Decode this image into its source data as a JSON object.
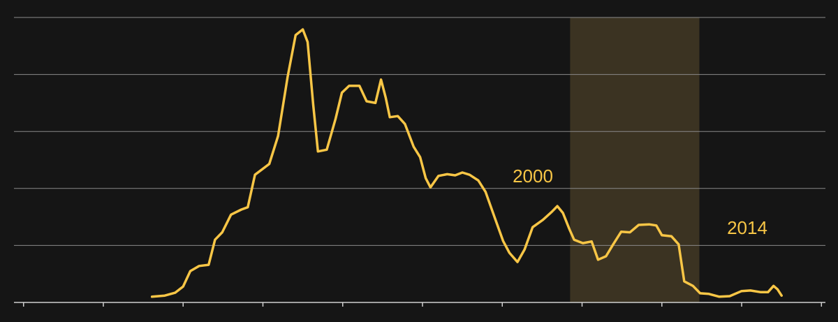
{
  "chart_data": {
    "type": "line",
    "color": "#f8c646",
    "grid": true,
    "xlim": [
      -0.12,
      10.05
    ],
    "xticks": [
      0,
      1,
      2,
      3,
      4,
      5,
      6,
      7,
      8,
      9,
      10
    ],
    "ylim": [
      0,
      5
    ],
    "yticks": [
      0,
      1,
      2,
      3,
      4,
      5
    ],
    "shaded_span": [
      6.85,
      8.47
    ],
    "annotations": [
      "2000",
      "2014"
    ],
    "x": [
      1.61,
      1.77,
      1.9,
      2.0,
      2.09,
      2.2,
      2.32,
      2.4,
      2.49,
      2.6,
      2.73,
      2.81,
      2.9,
      3.08,
      3.19,
      3.31,
      3.41,
      3.5,
      3.56,
      3.63,
      3.69,
      3.8,
      3.91,
      3.99,
      4.08,
      4.21,
      4.3,
      4.41,
      4.48,
      4.54,
      4.59,
      4.69,
      4.78,
      4.89,
      4.97,
      5.04,
      5.1,
      5.2,
      5.31,
      5.41,
      5.5,
      5.59,
      5.7,
      5.79,
      5.9,
      6.01,
      6.09,
      6.19,
      6.28,
      6.38,
      6.51,
      6.62,
      6.69,
      6.76,
      6.84,
      6.9,
      7.01,
      7.12,
      7.2,
      7.3,
      7.39,
      7.49,
      7.6,
      7.71,
      7.84,
      7.93,
      8.0,
      8.12,
      8.21,
      8.28,
      8.39,
      8.48,
      8.59,
      8.72,
      8.85,
      9.0,
      9.11,
      9.24,
      9.33,
      9.4,
      9.45,
      9.5
    ],
    "values": [
      0.1,
      0.12,
      0.17,
      0.28,
      0.55,
      0.64,
      0.66,
      1.1,
      1.23,
      1.54,
      1.63,
      1.67,
      2.24,
      2.43,
      2.92,
      3.96,
      4.69,
      4.79,
      4.57,
      3.47,
      2.65,
      2.68,
      3.22,
      3.68,
      3.8,
      3.8,
      3.53,
      3.5,
      3.91,
      3.59,
      3.25,
      3.27,
      3.13,
      2.73,
      2.55,
      2.18,
      2.02,
      2.22,
      2.25,
      2.23,
      2.28,
      2.24,
      2.14,
      1.94,
      1.51,
      1.08,
      0.87,
      0.71,
      0.93,
      1.32,
      1.45,
      1.59,
      1.69,
      1.57,
      1.29,
      1.1,
      1.04,
      1.07,
      0.75,
      0.81,
      1.02,
      1.24,
      1.23,
      1.36,
      1.37,
      1.35,
      1.18,
      1.16,
      1.02,
      0.37,
      0.29,
      0.16,
      0.15,
      0.1,
      0.11,
      0.2,
      0.21,
      0.18,
      0.18,
      0.29,
      0.23,
      0.12
    ]
  }
}
